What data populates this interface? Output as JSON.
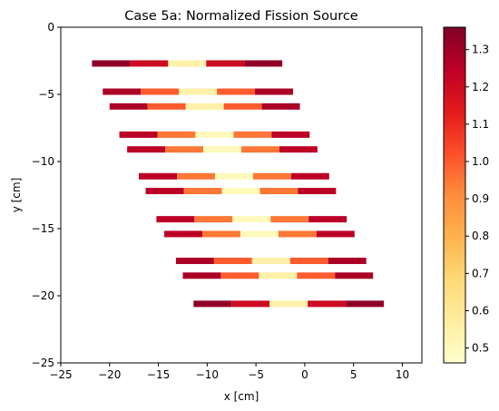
{
  "chart_data": {
    "type": "heatmap",
    "title": "Case 5a: Normalized Fission Source",
    "xlabel": "x [cm]",
    "ylabel": "y [cm]",
    "xlim": [
      -25,
      12
    ],
    "ylim": [
      -25,
      0
    ],
    "x_ticks": [
      -25,
      -20,
      -15,
      -10,
      -5,
      0,
      5,
      10
    ],
    "y_ticks": [
      0,
      -5,
      -10,
      -15,
      -20,
      -25
    ],
    "colorbar": {
      "colormap": "YlOrRd",
      "range": [
        0.46,
        1.36
      ],
      "ticks": [
        0.5,
        0.6,
        0.7,
        0.8,
        0.9,
        1.0,
        1.1,
        1.2,
        1.3
      ]
    },
    "segment_length_cm": 3.9,
    "rows": [
      {
        "y": -2.7,
        "x_start": -21.8,
        "values": [
          1.33,
          1.2,
          0.55,
          1.2,
          1.33
        ]
      },
      {
        "y": -4.8,
        "x_start": -20.7,
        "values": [
          1.28,
          1.0,
          0.55,
          1.0,
          1.28
        ]
      },
      {
        "y": -5.9,
        "x_start": -20.0,
        "values": [
          1.28,
          1.0,
          0.55,
          1.0,
          1.28
        ]
      },
      {
        "y": -8.0,
        "x_start": -19.0,
        "values": [
          1.25,
          0.95,
          0.5,
          0.95,
          1.25
        ]
      },
      {
        "y": -9.1,
        "x_start": -18.2,
        "values": [
          1.25,
          0.95,
          0.5,
          0.95,
          1.25
        ]
      },
      {
        "y": -11.1,
        "x_start": -17.0,
        "values": [
          1.25,
          0.95,
          0.5,
          0.95,
          1.25
        ]
      },
      {
        "y": -12.2,
        "x_start": -16.3,
        "values": [
          1.25,
          0.95,
          0.5,
          0.95,
          1.25
        ]
      },
      {
        "y": -14.3,
        "x_start": -15.2,
        "values": [
          1.25,
          0.95,
          0.5,
          0.95,
          1.25
        ]
      },
      {
        "y": -15.4,
        "x_start": -14.4,
        "values": [
          1.25,
          0.95,
          0.5,
          0.95,
          1.25
        ]
      },
      {
        "y": -17.4,
        "x_start": -13.2,
        "values": [
          1.28,
          1.0,
          0.55,
          1.0,
          1.28
        ]
      },
      {
        "y": -18.5,
        "x_start": -12.5,
        "values": [
          1.28,
          1.0,
          0.55,
          1.0,
          1.28
        ]
      },
      {
        "y": -20.6,
        "x_start": -11.4,
        "values": [
          1.33,
          1.2,
          0.55,
          1.2,
          1.33
        ]
      }
    ]
  }
}
